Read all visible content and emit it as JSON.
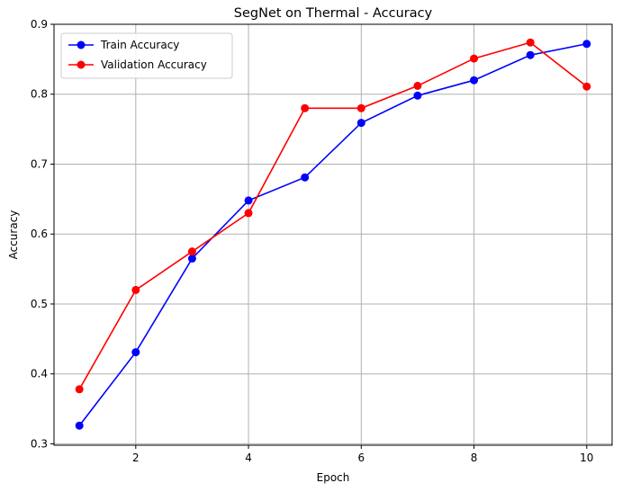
{
  "chart_data": {
    "type": "line",
    "title": "SegNet on Thermal - Accuracy",
    "xlabel": "Epoch",
    "ylabel": "Accuracy",
    "xlim": [
      0.55,
      10.45
    ],
    "ylim": [
      0.298,
      0.9
    ],
    "xticks": [
      2,
      4,
      6,
      8,
      10
    ],
    "yticks": [
      0.3,
      0.4,
      0.5,
      0.6,
      0.7,
      0.8,
      0.9
    ],
    "grid": true,
    "legend_position": "top-left",
    "x": [
      1,
      2,
      3,
      4,
      5,
      6,
      7,
      8,
      9,
      10
    ],
    "series": [
      {
        "name": "Train Accuracy",
        "color": "#0000ff",
        "marker": "circle",
        "values": [
          0.326,
          0.431,
          0.565,
          0.648,
          0.681,
          0.759,
          0.798,
          0.82,
          0.856,
          0.872
        ]
      },
      {
        "name": "Validation Accuracy",
        "color": "#ff0000",
        "marker": "circle",
        "values": [
          0.378,
          0.52,
          0.575,
          0.63,
          0.78,
          0.78,
          0.812,
          0.851,
          0.874,
          0.811
        ]
      }
    ]
  }
}
